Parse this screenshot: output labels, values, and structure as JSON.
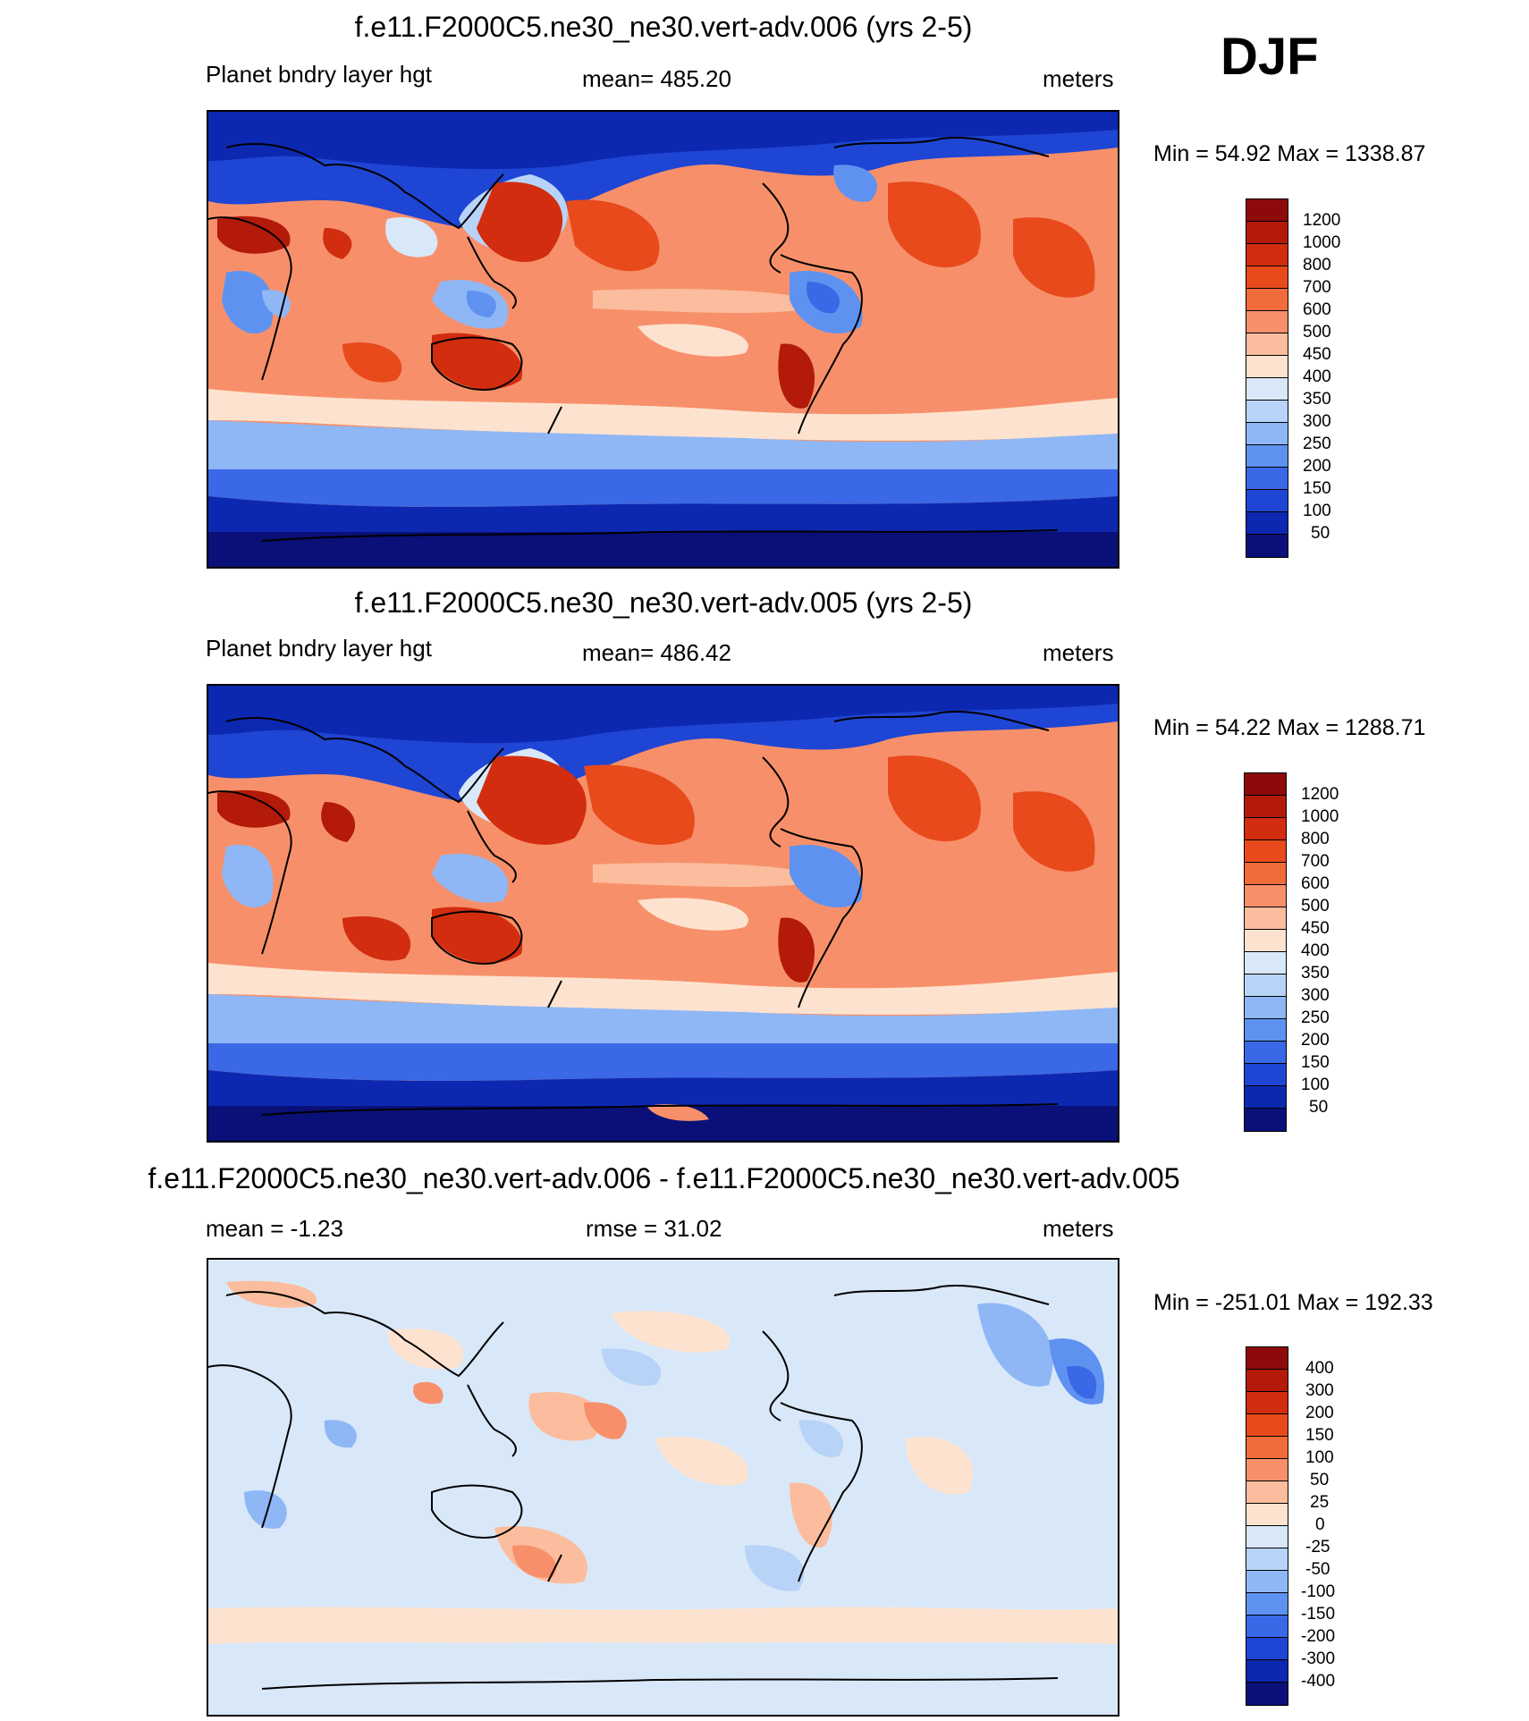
{
  "season": "DJF",
  "panels": [
    {
      "title": "f.e11.F2000C5.ne30_ne30.vert-adv.006 (yrs 2-5)",
      "left_label": "Planet bndry layer hgt",
      "center_label": "mean= 485.20",
      "right_label": "meters",
      "minmax": "Min =  54.92 Max = 1338.87",
      "colorbar_labels": [
        "1200",
        "1000",
        "800",
        "700",
        "600",
        "500",
        "450",
        "400",
        "350",
        "300",
        "250",
        "200",
        "150",
        "100",
        "50"
      ],
      "colorbar_colors": [
        "#8c0a0a",
        "#b31a0a",
        "#d12d0e",
        "#e84a1c",
        "#f26b3a",
        "#f7906a",
        "#fbbd9d",
        "#fde3cf",
        "#d9e8f9",
        "#b8d3f8",
        "#8fb7f6",
        "#5f92f0",
        "#3a68e6",
        "#1f45d4",
        "#0d28b0",
        "#0a1078"
      ]
    },
    {
      "title": "f.e11.F2000C5.ne30_ne30.vert-adv.005 (yrs 2-5)",
      "left_label": "Planet bndry layer hgt",
      "center_label": "mean= 486.42",
      "right_label": "meters",
      "minmax": "Min =  54.22 Max = 1288.71",
      "colorbar_labels": [
        "1200",
        "1000",
        "800",
        "700",
        "600",
        "500",
        "450",
        "400",
        "350",
        "300",
        "250",
        "200",
        "150",
        "100",
        "50"
      ],
      "colorbar_colors": [
        "#8c0a0a",
        "#b31a0a",
        "#d12d0e",
        "#e84a1c",
        "#f26b3a",
        "#f7906a",
        "#fbbd9d",
        "#fde3cf",
        "#d9e8f9",
        "#b8d3f8",
        "#8fb7f6",
        "#5f92f0",
        "#3a68e6",
        "#1f45d4",
        "#0d28b0",
        "#0a1078"
      ]
    },
    {
      "title": "f.e11.F2000C5.ne30_ne30.vert-adv.006 - f.e11.F2000C5.ne30_ne30.vert-adv.005",
      "left_label": "mean =  -1.23",
      "center_label": "rmse =  31.02",
      "right_label": "meters",
      "minmax": "Min = -251.01 Max = 192.33",
      "colorbar_labels": [
        "400",
        "300",
        "200",
        "150",
        "100",
        "50",
        "25",
        "0",
        "-25",
        "-50",
        "-100",
        "-150",
        "-200",
        "-300",
        "-400"
      ],
      "colorbar_colors": [
        "#8c0a0a",
        "#b31a0a",
        "#d12d0e",
        "#e84a1c",
        "#f26b3a",
        "#f7906a",
        "#fbbd9d",
        "#fde3cf",
        "#d9e8f9",
        "#b8d3f8",
        "#8fb7f6",
        "#5f92f0",
        "#3a68e6",
        "#1f45d4",
        "#0d28b0",
        "#0a1078"
      ]
    }
  ]
}
